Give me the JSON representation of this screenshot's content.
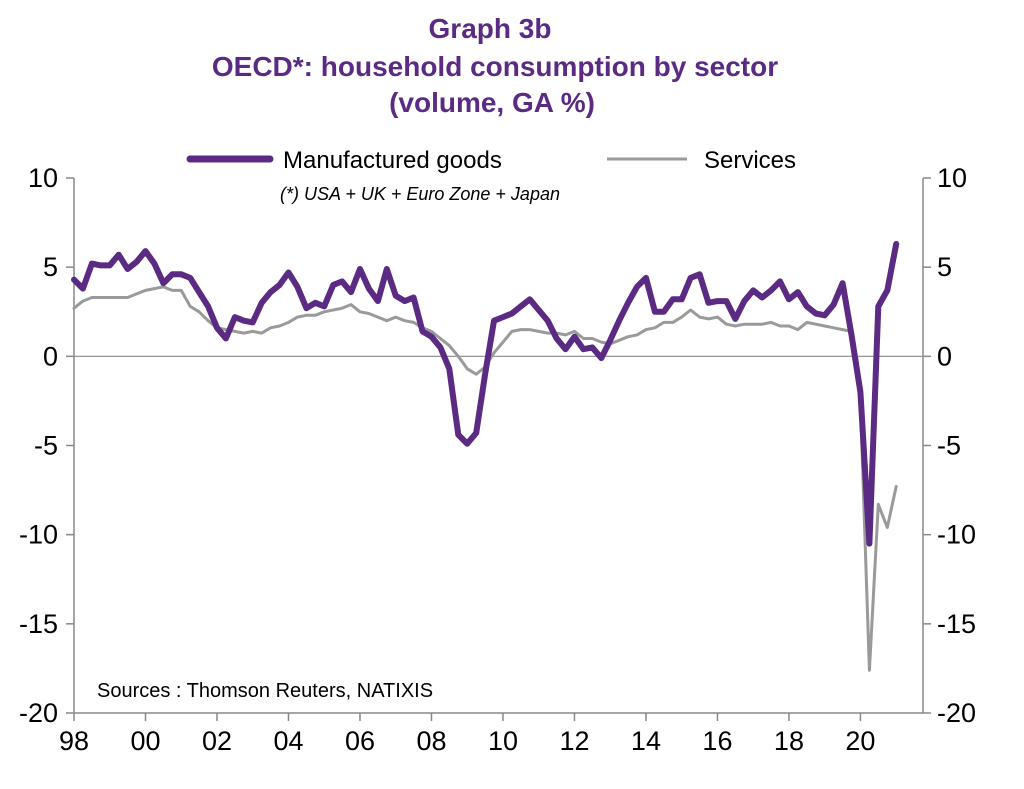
{
  "chart_data": {
    "type": "line",
    "title": "Graph 3b",
    "subtitle": "OECD*: household consumption by sector",
    "subtitle2": "(volume, GA %)",
    "footnote": "(*) USA + UK + Euro Zone + Japan",
    "source": "Sources : Thomson Reuters, NATIXIS",
    "ylim": [
      -20,
      10
    ],
    "yticks": [
      10,
      5,
      0,
      -5,
      -10,
      -15,
      -20
    ],
    "xlim": [
      1998,
      2021.75
    ],
    "xticks": [
      {
        "value": 1998,
        "label": "98"
      },
      {
        "value": 2000,
        "label": "00"
      },
      {
        "value": 2002,
        "label": "02"
      },
      {
        "value": 2004,
        "label": "04"
      },
      {
        "value": 2006,
        "label": "06"
      },
      {
        "value": 2008,
        "label": "08"
      },
      {
        "value": 2010,
        "label": "10"
      },
      {
        "value": 2012,
        "label": "12"
      },
      {
        "value": 2014,
        "label": "14"
      },
      {
        "value": 2016,
        "label": "16"
      },
      {
        "value": 2018,
        "label": "18"
      },
      {
        "value": 2020,
        "label": "20"
      }
    ],
    "grid": false,
    "legend_position": "top",
    "series": [
      {
        "name": "Manufactured goods",
        "color": "#5b2a83",
        "x": [
          1998,
          1998.25,
          1998.5,
          1998.75,
          1999,
          1999.25,
          1999.5,
          1999.75,
          2000,
          2000.25,
          2000.5,
          2000.75,
          2001,
          2001.25,
          2001.5,
          2001.75,
          2002,
          2002.25,
          2002.5,
          2002.75,
          2003,
          2003.25,
          2003.5,
          2003.75,
          2004,
          2004.25,
          2004.5,
          2004.75,
          2005,
          2005.25,
          2005.5,
          2005.75,
          2006,
          2006.25,
          2006.5,
          2006.75,
          2007,
          2007.25,
          2007.5,
          2007.75,
          2008,
          2008.25,
          2008.5,
          2008.75,
          2009,
          2009.25,
          2009.5,
          2009.75,
          2010,
          2010.25,
          2010.5,
          2010.75,
          2011,
          2011.25,
          2011.5,
          2011.75,
          2012,
          2012.25,
          2012.5,
          2012.75,
          2013,
          2013.25,
          2013.5,
          2013.75,
          2014,
          2014.25,
          2014.5,
          2014.75,
          2015,
          2015.25,
          2015.5,
          2015.75,
          2016,
          2016.25,
          2016.5,
          2016.75,
          2017,
          2017.25,
          2017.5,
          2017.75,
          2018,
          2018.25,
          2018.5,
          2018.75,
          2019,
          2019.25,
          2019.5,
          2019.75,
          2020,
          2020.25,
          2020.5,
          2020.75,
          2021
        ],
        "values": [
          4.3,
          3.8,
          5.2,
          5.1,
          5.1,
          5.7,
          4.9,
          5.3,
          5.9,
          5.2,
          4.1,
          4.6,
          4.6,
          4.4,
          3.6,
          2.8,
          1.6,
          1.0,
          2.2,
          2.0,
          1.9,
          3.0,
          3.6,
          4.0,
          4.7,
          3.9,
          2.7,
          3.0,
          2.8,
          4.0,
          4.2,
          3.6,
          4.9,
          3.8,
          3.1,
          4.9,
          3.4,
          3.1,
          3.3,
          1.4,
          1.1,
          0.5,
          -0.7,
          -4.4,
          -4.9,
          -4.3,
          -1.0,
          2.0,
          2.2,
          2.4,
          2.8,
          3.2,
          2.6,
          2.0,
          1.0,
          0.4,
          1.1,
          0.4,
          0.5,
          -0.1,
          0.9,
          2.0,
          3.0,
          3.9,
          4.4,
          2.5,
          2.5,
          3.2,
          3.2,
          4.4,
          4.6,
          3.0,
          3.1,
          3.1,
          2.1,
          3.1,
          3.7,
          3.3,
          3.7,
          4.2,
          3.2,
          3.6,
          2.8,
          2.4,
          2.3,
          2.9,
          4.1,
          1.2,
          -2.0,
          -10.5,
          2.8,
          3.7,
          6.3
        ]
      },
      {
        "name": "Services",
        "color": "#9a9a9a",
        "x": [
          1998,
          1998.25,
          1998.5,
          1998.75,
          1999,
          1999.25,
          1999.5,
          1999.75,
          2000,
          2000.25,
          2000.5,
          2000.75,
          2001,
          2001.25,
          2001.5,
          2001.75,
          2002,
          2002.25,
          2002.5,
          2002.75,
          2003,
          2003.25,
          2003.5,
          2003.75,
          2004,
          2004.25,
          2004.5,
          2004.75,
          2005,
          2005.25,
          2005.5,
          2005.75,
          2006,
          2006.25,
          2006.5,
          2006.75,
          2007,
          2007.25,
          2007.5,
          2007.75,
          2008,
          2008.25,
          2008.5,
          2008.75,
          2009,
          2009.25,
          2009.5,
          2009.75,
          2010,
          2010.25,
          2010.5,
          2010.75,
          2011,
          2011.25,
          2011.5,
          2011.75,
          2012,
          2012.25,
          2012.5,
          2012.75,
          2013,
          2013.25,
          2013.5,
          2013.75,
          2014,
          2014.25,
          2014.5,
          2014.75,
          2015,
          2015.25,
          2015.5,
          2015.75,
          2016,
          2016.25,
          2016.5,
          2016.75,
          2017,
          2017.25,
          2017.5,
          2017.75,
          2018,
          2018.25,
          2018.5,
          2018.75,
          2019,
          2019.25,
          2019.5,
          2019.75,
          2020,
          2020.25,
          2020.5,
          2020.75,
          2021
        ],
        "values": [
          2.7,
          3.1,
          3.3,
          3.3,
          3.3,
          3.3,
          3.3,
          3.5,
          3.7,
          3.8,
          3.9,
          3.7,
          3.7,
          2.8,
          2.5,
          2.0,
          1.6,
          1.5,
          1.4,
          1.3,
          1.4,
          1.3,
          1.6,
          1.7,
          1.9,
          2.2,
          2.3,
          2.3,
          2.5,
          2.6,
          2.7,
          2.9,
          2.5,
          2.4,
          2.2,
          2.0,
          2.2,
          2.0,
          1.9,
          1.6,
          1.4,
          1.0,
          0.6,
          0.0,
          -0.7,
          -1.0,
          -0.6,
          0.2,
          0.8,
          1.4,
          1.5,
          1.5,
          1.4,
          1.3,
          1.3,
          1.2,
          1.4,
          1.0,
          1.0,
          0.8,
          0.7,
          0.9,
          1.1,
          1.2,
          1.5,
          1.6,
          1.9,
          1.9,
          2.2,
          2.6,
          2.2,
          2.1,
          2.2,
          1.8,
          1.7,
          1.8,
          1.8,
          1.8,
          1.9,
          1.7,
          1.7,
          1.5,
          1.9,
          1.8,
          1.7,
          1.6,
          1.5,
          1.4,
          -2.5,
          -17.6,
          -8.3,
          -9.6,
          -7.3
        ]
      }
    ]
  }
}
